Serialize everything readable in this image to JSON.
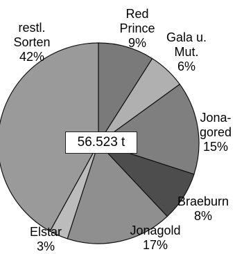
{
  "center_label": "56.523 t",
  "chart_data": {
    "type": "pie",
    "title": "",
    "total_label": "56.523 t",
    "slices": [
      {
        "lines": [
          "Red",
          "Prince",
          "9%"
        ],
        "value": 9,
        "color": "#7a7a7a"
      },
      {
        "lines": [
          "Gala u.",
          "Mut.",
          "6%"
        ],
        "value": 6,
        "color": "#b0b0b0"
      },
      {
        "lines": [
          "Jona-",
          "gored",
          "15%"
        ],
        "value": 15,
        "color": "#7f7f7f"
      },
      {
        "lines": [
          "Braeburn",
          "8%"
        ],
        "value": 8,
        "color": "#4d4d4d"
      },
      {
        "lines": [
          "Jonagold",
          "17%"
        ],
        "value": 17,
        "color": "#8f8f8f"
      },
      {
        "lines": [
          "Elstar",
          "3%"
        ],
        "value": 3,
        "color": "#bcbcbc"
      },
      {
        "lines": [
          "restl.",
          "Sorten",
          "42%"
        ],
        "value": 42,
        "color": "#9a9a9a"
      }
    ]
  }
}
